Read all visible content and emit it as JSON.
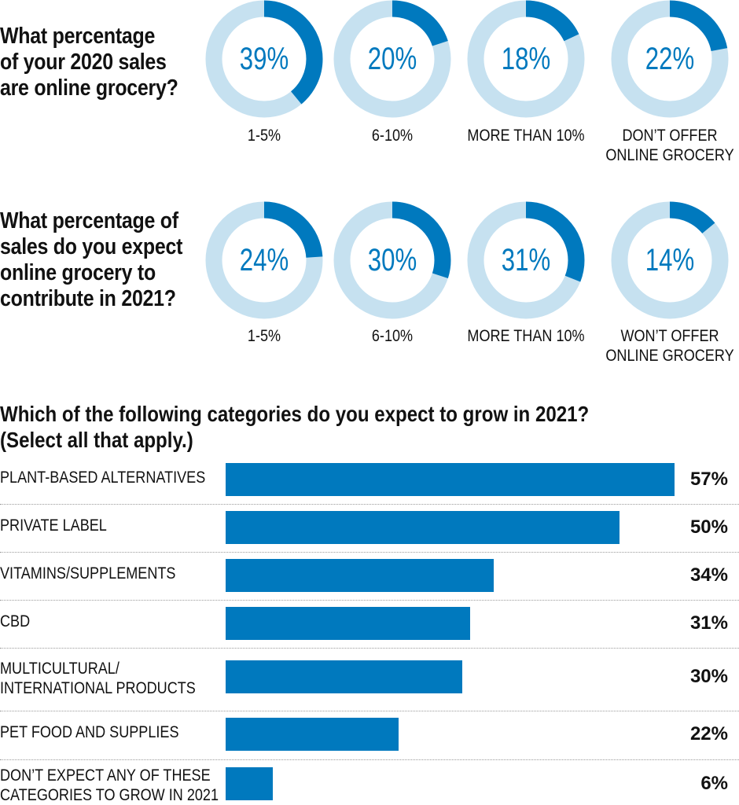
{
  "colors": {
    "accent": "#0079be",
    "ring": "#c6e1f0",
    "text": "#111111"
  },
  "questions": [
    {
      "title_lines": [
        "What percentage",
        "of your 2020 sales",
        "are online grocery?"
      ]
    },
    {
      "title_lines": [
        "What percentage of",
        "sales do you expect",
        "online grocery to",
        "contribute in 2021?"
      ]
    }
  ],
  "bar_title_lines": [
    "Which of the following categories do you expect to grow in 2021?",
    "(Select all that apply.)"
  ],
  "chart_data": [
    {
      "type": "pie",
      "title": "What percentage of your 2020 sales are online grocery?",
      "slices": [
        {
          "label_lines": [
            "1-5%"
          ],
          "value": 39,
          "display": "39%"
        },
        {
          "label_lines": [
            "6-10%"
          ],
          "value": 20,
          "display": "20%"
        },
        {
          "label_lines": [
            "MORE THAN 10%"
          ],
          "value": 18,
          "display": "18%"
        },
        {
          "label_lines": [
            "DON’T OFFER",
            "ONLINE GROCERY"
          ],
          "value": 22,
          "display": "22%"
        }
      ]
    },
    {
      "type": "pie",
      "title": "What percentage of sales do you expect online grocery to contribute in 2021?",
      "slices": [
        {
          "label_lines": [
            "1-5%"
          ],
          "value": 24,
          "display": "24%"
        },
        {
          "label_lines": [
            "6-10%"
          ],
          "value": 30,
          "display": "30%"
        },
        {
          "label_lines": [
            "MORE THAN 10%"
          ],
          "value": 31,
          "display": "31%"
        },
        {
          "label_lines": [
            "WON’T OFFER",
            "ONLINE GROCERY"
          ],
          "value": 14,
          "display": "14%"
        }
      ]
    },
    {
      "type": "bar",
      "title": "Which of the following categories do you expect to grow in 2021? (Select all that apply.)",
      "xlim": [
        0,
        57
      ],
      "categories": [
        {
          "label_lines": [
            "PLANT-BASED ALTERNATIVES"
          ],
          "value": 57,
          "display": "57%"
        },
        {
          "label_lines": [
            "PRIVATE LABEL"
          ],
          "value": 50,
          "display": "50%"
        },
        {
          "label_lines": [
            "VITAMINS/SUPPLEMENTS"
          ],
          "value": 34,
          "display": "34%"
        },
        {
          "label_lines": [
            "CBD"
          ],
          "value": 31,
          "display": "31%"
        },
        {
          "label_lines": [
            "MULTICULTURAL/",
            "INTERNATIONAL PRODUCTS"
          ],
          "value": 30,
          "display": "30%"
        },
        {
          "label_lines": [
            "PET FOOD AND SUPPLIES"
          ],
          "value": 22,
          "display": "22%"
        },
        {
          "label_lines": [
            "DON’T EXPECT ANY OF THESE",
            "CATEGORIES TO GROW IN 2021"
          ],
          "value": 6,
          "display": "6%"
        }
      ]
    }
  ]
}
